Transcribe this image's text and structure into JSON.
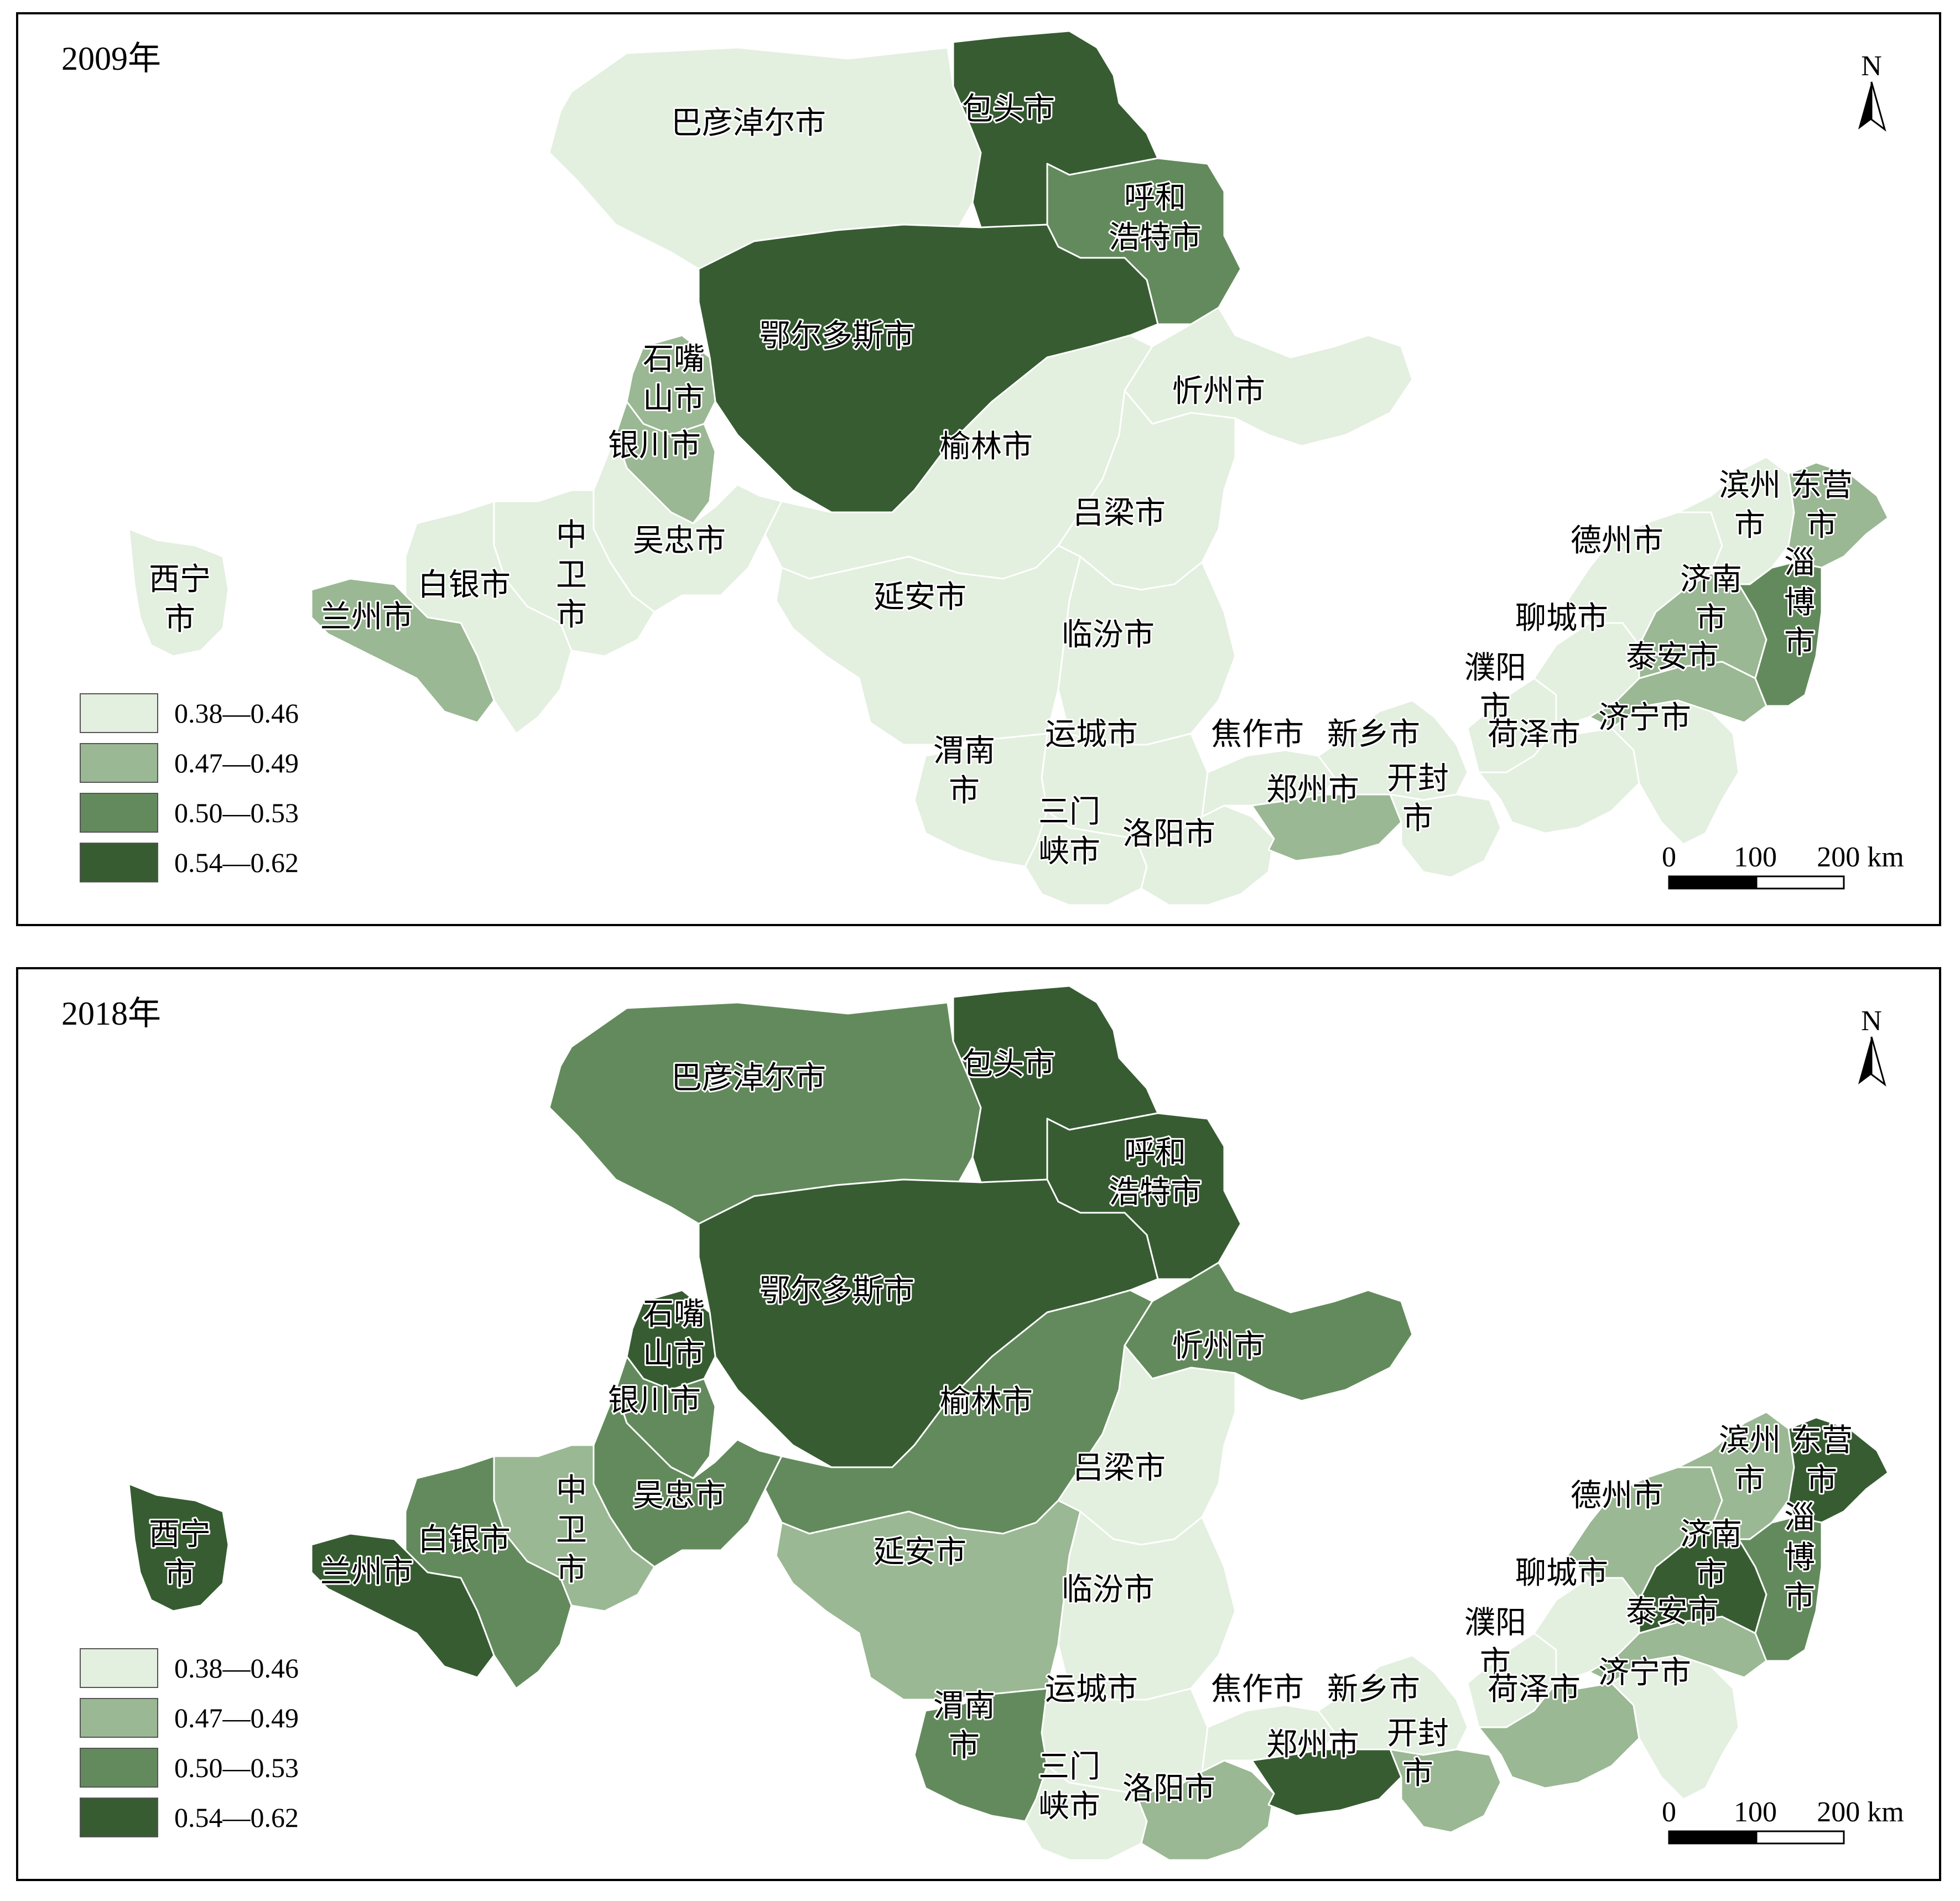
{
  "legend": {
    "classes": [
      {
        "label": "0.38—0.46",
        "color": "#e3efdf"
      },
      {
        "label": "0.47—0.49",
        "color": "#9ab893"
      },
      {
        "label": "0.50—0.53",
        "color": "#638a5c"
      },
      {
        "label": "0.54—0.62",
        "color": "#375c32"
      }
    ]
  },
  "scale_bar": {
    "ticks": [
      "0",
      "100",
      "200 km"
    ]
  },
  "north_arrow": {
    "label": "N"
  },
  "regions": [
    {
      "id": "bayannaoer",
      "label": [
        "巴彦淖尔市"
      ]
    },
    {
      "id": "baotou",
      "label": [
        "包头市"
      ]
    },
    {
      "id": "huhehaote",
      "label": [
        "呼和",
        "浩特市"
      ]
    },
    {
      "id": "eerduosi",
      "label": [
        "鄂尔多斯市"
      ]
    },
    {
      "id": "shizuishan",
      "label": [
        "石嘴",
        "山市"
      ]
    },
    {
      "id": "yinchuan",
      "label": [
        "银川市"
      ]
    },
    {
      "id": "wuzhong",
      "label": [
        "吴忠市"
      ]
    },
    {
      "id": "zhongwei",
      "label": [
        "中",
        "卫",
        "市"
      ]
    },
    {
      "id": "baiyin",
      "label": [
        "白银市"
      ]
    },
    {
      "id": "lanzhou",
      "label": [
        "兰州市"
      ]
    },
    {
      "id": "xining",
      "label": [
        "西宁",
        "市"
      ]
    },
    {
      "id": "yulin",
      "label": [
        "榆林市"
      ]
    },
    {
      "id": "xinzhou",
      "label": [
        "忻州市"
      ]
    },
    {
      "id": "lvliang",
      "label": [
        "吕梁市"
      ]
    },
    {
      "id": "yanan",
      "label": [
        "延安市"
      ]
    },
    {
      "id": "linfen",
      "label": [
        "临汾市"
      ]
    },
    {
      "id": "yuncheng",
      "label": [
        "运城市"
      ]
    },
    {
      "id": "weinan",
      "label": [
        "渭南",
        "市"
      ]
    },
    {
      "id": "sanmenxia",
      "label": [
        "三门",
        "峡市"
      ]
    },
    {
      "id": "luoyang",
      "label": [
        "洛阳市"
      ]
    },
    {
      "id": "jiaozuo",
      "label": [
        "焦作市"
      ]
    },
    {
      "id": "xinxiang",
      "label": [
        "新乡市"
      ]
    },
    {
      "id": "zhengzhou",
      "label": [
        "郑州市"
      ]
    },
    {
      "id": "kaifeng",
      "label": [
        "开封",
        "市"
      ]
    },
    {
      "id": "puyang",
      "label": [
        "濮阳",
        "市"
      ]
    },
    {
      "id": "heze",
      "label": [
        "荷泽市"
      ]
    },
    {
      "id": "liaocheng",
      "label": [
        "聊城市"
      ]
    },
    {
      "id": "jining",
      "label": [
        "济宁市"
      ]
    },
    {
      "id": "taian",
      "label": [
        "泰安市"
      ]
    },
    {
      "id": "jinan",
      "label": [
        "济南",
        "市"
      ]
    },
    {
      "id": "dezhou",
      "label": [
        "德州市"
      ]
    },
    {
      "id": "binzhou",
      "label": [
        "滨州",
        "市"
      ]
    },
    {
      "id": "dongying",
      "label": [
        "东营",
        "市"
      ]
    },
    {
      "id": "zibo",
      "label": [
        "淄",
        "博",
        "市"
      ]
    }
  ],
  "panels": [
    {
      "year": "2009年",
      "classes": {
        "bayannaoer": 0,
        "baotou": 3,
        "huhehaote": 2,
        "eerduosi": 3,
        "shizuishan": 1,
        "yinchuan": 1,
        "wuzhong": 0,
        "zhongwei": 0,
        "baiyin": 0,
        "lanzhou": 1,
        "xining": 0,
        "yulin": 0,
        "xinzhou": 0,
        "lvliang": 0,
        "yanan": 0,
        "linfen": 0,
        "yuncheng": 0,
        "weinan": 0,
        "sanmenxia": 0,
        "luoyang": 0,
        "jiaozuo": 0,
        "xinxiang": 0,
        "zhengzhou": 1,
        "kaifeng": 0,
        "puyang": 0,
        "heze": 0,
        "liaocheng": 0,
        "jining": 0,
        "taian": 1,
        "jinan": 1,
        "dezhou": 0,
        "binzhou": 0,
        "dongying": 1,
        "zibo": 2
      }
    },
    {
      "year": "2018年",
      "classes": {
        "bayannaoer": 2,
        "baotou": 3,
        "huhehaote": 3,
        "eerduosi": 3,
        "shizuishan": 3,
        "yinchuan": 2,
        "wuzhong": 2,
        "zhongwei": 1,
        "baiyin": 2,
        "lanzhou": 3,
        "xining": 3,
        "yulin": 2,
        "xinzhou": 2,
        "lvliang": 0,
        "yanan": 1,
        "linfen": 0,
        "yuncheng": 0,
        "weinan": 2,
        "sanmenxia": 0,
        "luoyang": 1,
        "jiaozuo": 0,
        "xinxiang": 0,
        "zhengzhou": 3,
        "kaifeng": 1,
        "puyang": 0,
        "heze": 1,
        "liaocheng": 0,
        "jining": 0,
        "taian": 1,
        "jinan": 3,
        "dezhou": 1,
        "binzhou": 1,
        "dongying": 3,
        "zibo": 2
      }
    }
  ]
}
